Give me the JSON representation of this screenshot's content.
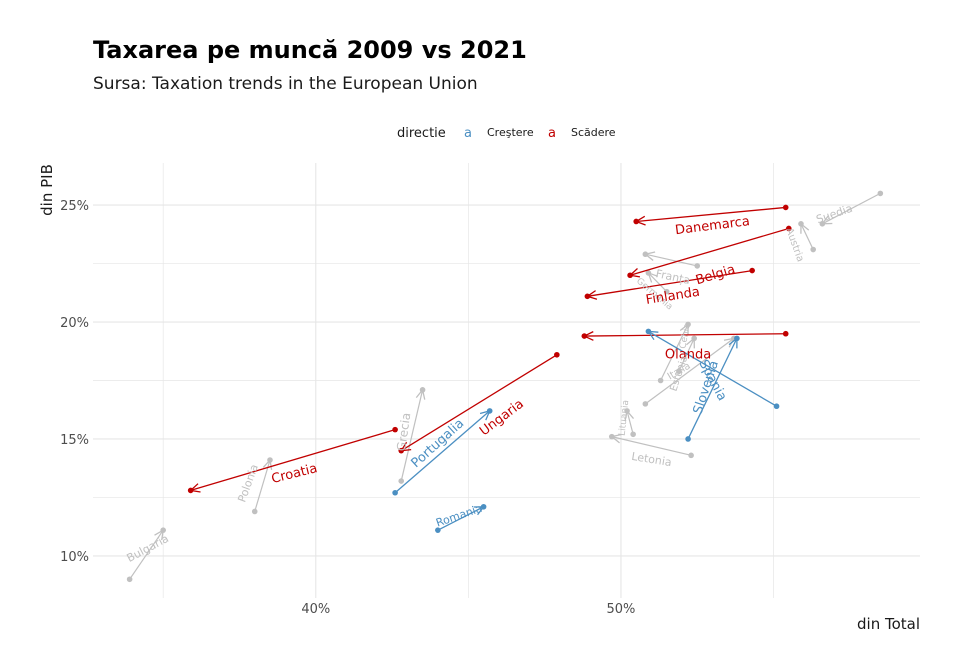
{
  "colors": {
    "increase": "#4b8fc2",
    "decrease": "#c10000",
    "other": "#c0c0c0",
    "grid": "#e6e6e6"
  },
  "chart_data": {
    "type": "scatter",
    "title": "Taxarea pe muncă 2009 vs 2021",
    "subtitle": "Sursa: Taxation trends in the European Union",
    "xlabel": "din Total",
    "ylabel": "din PIB",
    "xlim": [
      32.7,
      59.8
    ],
    "ylim": [
      8.2,
      26.8
    ],
    "x_ticks": [
      40,
      50
    ],
    "x_tick_labels": [
      "40%",
      "50%"
    ],
    "y_ticks": [
      10,
      15,
      20,
      25
    ],
    "y_tick_labels": [
      "10%",
      "15%",
      "20%",
      "25%"
    ],
    "legend": {
      "title": "directie",
      "position": "top",
      "key_glyph": "a",
      "entries": [
        {
          "name": "Creştere",
          "color_key": "increase"
        },
        {
          "name": "Scădere",
          "color_key": "decrease"
        }
      ]
    },
    "series": [
      {
        "name": "Creştere",
        "color_key": "increase",
        "highlighted": true
      },
      {
        "name": "Scădere",
        "color_key": "decrease",
        "highlighted": true
      },
      {
        "name": "",
        "color_key": "other",
        "highlighted": false
      }
    ],
    "points": [
      {
        "country": "Suedia",
        "dir": "other",
        "x2009": 58.5,
        "y2009": 25.5,
        "x2021": 56.6,
        "y2021": 24.2
      },
      {
        "country": "Austria",
        "dir": "other",
        "x2009": 56.3,
        "y2009": 23.1,
        "x2021": 55.9,
        "y2021": 24.2
      },
      {
        "country": "Danemarca",
        "dir": "decrease",
        "x2009": 55.4,
        "y2009": 24.9,
        "x2021": 50.5,
        "y2021": 24.3
      },
      {
        "country": "Belgia",
        "dir": "decrease",
        "x2009": 55.5,
        "y2009": 24.0,
        "x2021": 50.3,
        "y2021": 22.0
      },
      {
        "country": "Franța",
        "dir": "other",
        "x2009": 52.5,
        "y2009": 22.4,
        "x2021": 50.8,
        "y2021": 22.9
      },
      {
        "country": "Germania",
        "dir": "other",
        "x2009": 51.5,
        "y2009": 21.3,
        "x2021": 50.9,
        "y2021": 22.1
      },
      {
        "country": "Finlanda",
        "dir": "decrease",
        "x2009": 54.3,
        "y2009": 22.2,
        "x2021": 48.9,
        "y2021": 21.1
      },
      {
        "country": "Olanda",
        "dir": "decrease",
        "x2009": 55.4,
        "y2009": 19.5,
        "x2021": 48.8,
        "y2021": 19.4
      },
      {
        "country": "Slovenia",
        "dir": "increase",
        "x2009": 55.1,
        "y2009": 16.4,
        "x2021": 50.9,
        "y2021": 19.6
      },
      {
        "country": "Spania",
        "dir": "increase",
        "x2009": 52.2,
        "y2009": 15.0,
        "x2021": 53.8,
        "y2021": 19.3
      },
      {
        "country": "Cehia",
        "dir": "other",
        "x2009": 51.3,
        "y2009": 17.5,
        "x2021": 52.2,
        "y2021": 19.9
      },
      {
        "country": "Estonia",
        "dir": "other",
        "x2009": 51.9,
        "y2009": 17.9,
        "x2021": 52.4,
        "y2021": 19.3
      },
      {
        "country": "Italia",
        "dir": "other",
        "x2009": 50.8,
        "y2009": 16.5,
        "x2021": 53.7,
        "y2021": 19.3
      },
      {
        "country": "Lituania",
        "dir": "other",
        "x2009": 50.4,
        "y2009": 15.2,
        "x2021": 50.2,
        "y2021": 16.2
      },
      {
        "country": "Letonia",
        "dir": "other",
        "x2009": 52.3,
        "y2009": 14.3,
        "x2021": 49.7,
        "y2021": 15.1
      },
      {
        "country": "Ungaria",
        "dir": "decrease",
        "x2009": 47.9,
        "y2009": 18.6,
        "x2021": 42.8,
        "y2021": 14.5
      },
      {
        "country": "Portugalia",
        "dir": "increase",
        "x2009": 42.6,
        "y2009": 12.7,
        "x2021": 45.7,
        "y2021": 16.2
      },
      {
        "country": "Grecia",
        "dir": "other",
        "x2009": 42.8,
        "y2009": 13.2,
        "x2021": 43.5,
        "y2021": 17.1
      },
      {
        "country": "Croatia",
        "dir": "decrease",
        "x2009": 42.6,
        "y2009": 15.4,
        "x2021": 35.9,
        "y2021": 12.8
      },
      {
        "country": "Polonia",
        "dir": "other",
        "x2009": 38.0,
        "y2009": 11.9,
        "x2021": 38.5,
        "y2021": 14.1
      },
      {
        "country": "Romania",
        "dir": "increase",
        "x2009": 44.0,
        "y2009": 11.1,
        "x2021": 45.5,
        "y2021": 12.1
      },
      {
        "country": "Bulgaria",
        "dir": "other",
        "x2009": 33.9,
        "y2009": 9.0,
        "x2021": 35.0,
        "y2021": 11.1
      }
    ],
    "labels": [
      {
        "text": "Suedia",
        "dir": "other",
        "x": 57.0,
        "y": 24.6,
        "angle": -19,
        "size": 11
      },
      {
        "text": "Austria",
        "dir": "other",
        "x": 55.7,
        "y": 23.3,
        "angle": 70,
        "size": 10
      },
      {
        "text": "Danemarca",
        "dir": "decrease",
        "x": 53.0,
        "y": 24.1,
        "angle": -7,
        "size": 13
      },
      {
        "text": "Belgia",
        "dir": "decrease",
        "x": 53.1,
        "y": 22.0,
        "angle": -17,
        "size": 13
      },
      {
        "text": "Franța",
        "dir": "other",
        "x": 51.7,
        "y": 21.9,
        "angle": 12,
        "size": 11
      },
      {
        "text": "Germania",
        "dir": "other",
        "x": 51.1,
        "y": 21.2,
        "angle": 40,
        "size": 9
      },
      {
        "text": "Finlanda",
        "dir": "decrease",
        "x": 51.7,
        "y": 21.1,
        "angle": -9,
        "size": 13
      },
      {
        "text": "Olanda",
        "dir": "decrease",
        "x": 52.2,
        "y": 18.6,
        "angle": 0,
        "size": 13
      },
      {
        "text": "Spania",
        "dir": "increase",
        "x": 53.0,
        "y": 17.5,
        "angle": 62,
        "size": 13
      },
      {
        "text": "Slovenia",
        "dir": "increase",
        "x": 52.8,
        "y": 17.2,
        "angle": -72,
        "size": 13
      },
      {
        "text": "Cehia",
        "dir": "other",
        "x": 52.1,
        "y": 19.4,
        "angle": -80,
        "size": 9
      },
      {
        "text": "Estonia",
        "dir": "other",
        "x": 51.9,
        "y": 17.8,
        "angle": -72,
        "size": 10
      },
      {
        "text": "Italia",
        "dir": "other",
        "x": 51.9,
        "y": 17.9,
        "angle": -30,
        "size": 10
      },
      {
        "text": "Lituania",
        "dir": "other",
        "x": 50.1,
        "y": 15.9,
        "angle": -84,
        "size": 9
      },
      {
        "text": "Letonia",
        "dir": "other",
        "x": 51.0,
        "y": 14.1,
        "angle": 9,
        "size": 11
      },
      {
        "text": "Ungaria",
        "dir": "decrease",
        "x": 46.1,
        "y": 15.9,
        "angle": -37,
        "size": 13
      },
      {
        "text": "Portugalia",
        "dir": "increase",
        "x": 44.0,
        "y": 14.8,
        "angle": -42,
        "size": 13
      },
      {
        "text": "Grecia",
        "dir": "other",
        "x": 42.9,
        "y": 15.3,
        "angle": -82,
        "size": 12
      },
      {
        "text": "Croatia",
        "dir": "decrease",
        "x": 39.3,
        "y": 13.5,
        "angle": -14,
        "size": 13
      },
      {
        "text": "Polonia",
        "dir": "other",
        "x": 37.8,
        "y": 13.1,
        "angle": -70,
        "size": 11
      },
      {
        "text": "Romania",
        "dir": "increase",
        "x": 44.7,
        "y": 11.7,
        "angle": -19,
        "size": 11
      },
      {
        "text": "Bulgaria",
        "dir": "other",
        "x": 34.5,
        "y": 10.3,
        "angle": -28,
        "size": 11
      }
    ]
  }
}
